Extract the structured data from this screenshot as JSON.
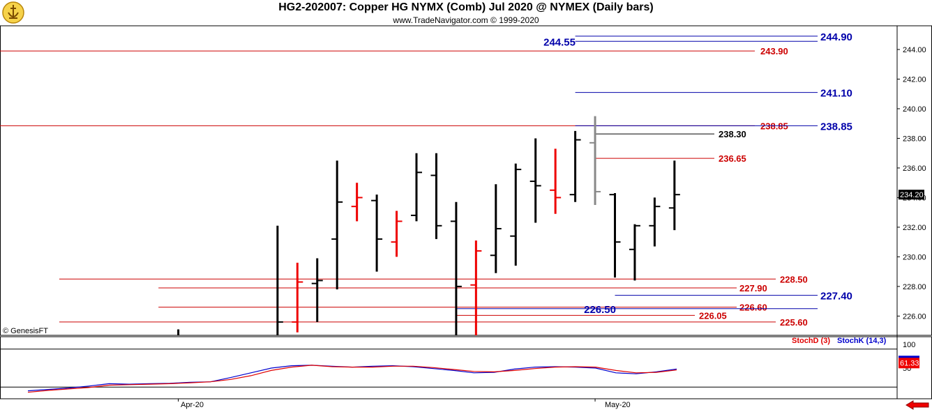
{
  "title": "HG2-202007:  Copper HG NYMX (Comb) Jul 2020 @ NYMEX  (Daily bars)",
  "subtitle": "www.TradeNavigator.com © 1999-2020",
  "watermark": "© GenesisFT",
  "colors": {
    "up_bar": "#000000",
    "down_bar": "#ee0000",
    "gray_bar": "#888888",
    "support": "#cc0000",
    "blue_line": "#0000aa",
    "stoch_k": "#0000cc",
    "stoch_d": "#e00000"
  },
  "icons": {
    "logo": "trade-navigator-logo-icon",
    "nav": "left-arrow-icon"
  },
  "chart_data": [
    {
      "type": "ohlc",
      "title": "HG2-202007:  Copper HG NYMX (Comb) Jul 2020 @ NYMEX  (Daily bars)",
      "ylim": [
        224.7,
        245.6
      ],
      "yticks": [
        "226.00",
        "228.00",
        "230.00",
        "232.00",
        "234.00",
        "236.00",
        "238.00",
        "240.00",
        "242.00",
        "244.00"
      ],
      "xlabels": [
        {
          "index": 8,
          "label": "Apr-20"
        },
        {
          "index": 29,
          "label": "May-20"
        }
      ],
      "last_price": "234.20",
      "bars": [
        {
          "i": 8,
          "o": null,
          "h": 225.1,
          "l": 224.7,
          "c": null,
          "color": "black"
        },
        {
          "i": 13,
          "o": null,
          "h": 232.1,
          "l": 224.7,
          "c": 225.6,
          "color": "black"
        },
        {
          "i": 14,
          "o": 225.6,
          "h": 229.6,
          "l": 224.9,
          "c": 228.3,
          "color": "red"
        },
        {
          "i": 15,
          "o": 228.2,
          "h": 229.9,
          "l": 225.6,
          "c": 228.4,
          "color": "black"
        },
        {
          "i": 16,
          "o": 231.2,
          "h": 236.5,
          "l": 227.8,
          "c": 233.7,
          "color": "black"
        },
        {
          "i": 17,
          "o": 233.4,
          "h": 235.0,
          "l": 232.4,
          "c": 234.0,
          "color": "red"
        },
        {
          "i": 18,
          "o": 233.8,
          "h": 234.2,
          "l": 229.0,
          "c": 231.2,
          "color": "black"
        },
        {
          "i": 19,
          "o": 231.0,
          "h": 233.1,
          "l": 230.0,
          "c": 232.4,
          "color": "red"
        },
        {
          "i": 20,
          "o": 232.8,
          "h": 237.0,
          "l": 232.4,
          "c": 235.7,
          "color": "black"
        },
        {
          "i": 21,
          "o": 235.5,
          "h": 237.0,
          "l": 231.2,
          "c": 232.1,
          "color": "black"
        },
        {
          "i": 22,
          "o": 232.4,
          "h": 233.7,
          "l": 224.7,
          "c": 228.0,
          "color": "black"
        },
        {
          "i": 23,
          "o": 228.1,
          "h": 231.1,
          "l": 224.7,
          "c": 230.4,
          "color": "red"
        },
        {
          "i": 24,
          "o": 230.1,
          "h": 234.9,
          "l": 228.9,
          "c": 231.9,
          "color": "black"
        },
        {
          "i": 25,
          "o": 231.4,
          "h": 236.3,
          "l": 229.4,
          "c": 235.9,
          "color": "black"
        },
        {
          "i": 26,
          "o": 235.1,
          "h": 238.0,
          "l": 232.3,
          "c": 234.8,
          "color": "black"
        },
        {
          "i": 27,
          "o": 234.5,
          "h": 237.3,
          "l": 232.9,
          "c": 234.0,
          "color": "red"
        },
        {
          "i": 28,
          "o": 234.2,
          "h": 238.5,
          "l": 233.7,
          "c": 237.9,
          "color": "black"
        },
        {
          "i": 29,
          "o": 237.7,
          "h": 239.5,
          "l": 233.5,
          "c": 234.4,
          "color": "gray"
        },
        {
          "i": 30,
          "o": 234.2,
          "h": 234.3,
          "l": 228.6,
          "c": 231.0,
          "color": "black"
        },
        {
          "i": 31,
          "o": 230.5,
          "h": 232.2,
          "l": 228.4,
          "c": 232.1,
          "color": "black"
        },
        {
          "i": 32,
          "o": 232.1,
          "h": 234.0,
          "l": 230.7,
          "c": 233.4,
          "color": "black"
        },
        {
          "i": 33,
          "o": 233.3,
          "h": 236.5,
          "l": 231.8,
          "c": 234.2,
          "color": "black"
        }
      ],
      "levels": [
        {
          "value": 244.9,
          "label": "244.90",
          "color": "blue",
          "from": 28
        },
        {
          "value": 244.55,
          "label": "244.55",
          "color": "blue",
          "from": 28
        },
        {
          "value": 243.9,
          "label": "243.90",
          "color": "red",
          "from": 0
        },
        {
          "value": 241.1,
          "label": "241.10",
          "color": "blue",
          "from": 28
        },
        {
          "value": 238.85,
          "label": "238.85",
          "color": "red",
          "from": 0
        },
        {
          "value": 238.85,
          "label": "238.85",
          "color": "blue",
          "from": 28
        },
        {
          "value": 238.3,
          "label": "238.30",
          "color": "black",
          "from": 29
        },
        {
          "value": 236.65,
          "label": "236.65",
          "color": "red",
          "from": 29
        },
        {
          "value": 228.5,
          "label": "228.50",
          "color": "red",
          "from": 2
        },
        {
          "value": 227.9,
          "label": "227.90",
          "color": "red",
          "from": 7
        },
        {
          "value": 227.4,
          "label": "227.40",
          "color": "blue",
          "from": 30
        },
        {
          "value": 226.6,
          "label": "226.60",
          "color": "red",
          "from": 7
        },
        {
          "value": 226.5,
          "label": "226.50",
          "color": "blue",
          "from": 22
        },
        {
          "value": 226.05,
          "label": "226.05",
          "color": "red",
          "from": 22
        },
        {
          "value": 225.6,
          "label": "225.60",
          "color": "red",
          "from": 2
        }
      ]
    },
    {
      "type": "line",
      "series_labels": [
        "StochD (3)",
        "StochK (14,3)"
      ],
      "ylim": [
        0,
        100
      ],
      "yticks": [
        "100",
        "50"
      ],
      "last_value": "61.33",
      "series": [
        {
          "name": "StochK (14,3)",
          "color": "blue",
          "values": [
            2,
            5,
            8,
            12,
            17,
            16,
            17,
            18,
            20,
            21,
            30,
            40,
            50,
            55,
            56,
            54,
            52,
            54,
            55,
            53,
            49,
            45,
            40,
            41,
            48,
            52,
            53,
            52,
            50,
            40,
            38,
            42,
            48
          ]
        },
        {
          "name": "StochD (3)",
          "color": "red",
          "values": [
            -1,
            3,
            6,
            9,
            14,
            15,
            16,
            17,
            19,
            21,
            26,
            34,
            45,
            52,
            56,
            53,
            52,
            52,
            54,
            54,
            51,
            47,
            43,
            42,
            45,
            49,
            52,
            53,
            52,
            45,
            40,
            41,
            46
          ]
        }
      ]
    }
  ]
}
